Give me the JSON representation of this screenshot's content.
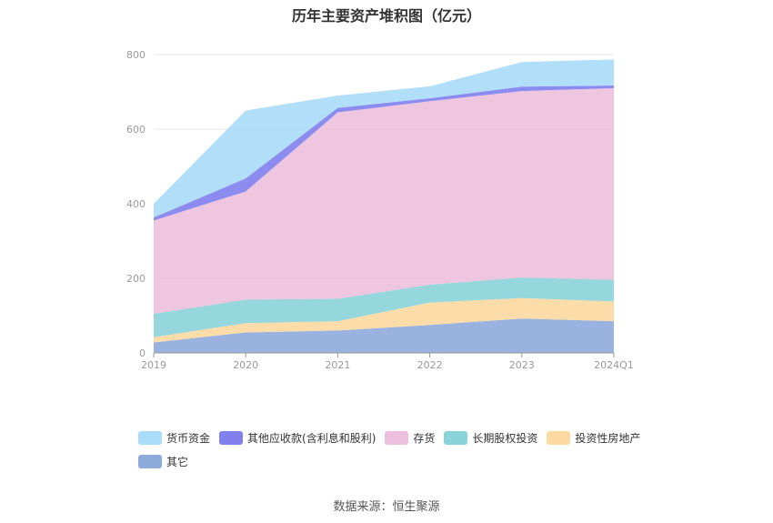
{
  "chart_data": {
    "type": "area",
    "stacked": true,
    "title": "历年主要资产堆积图（亿元）",
    "categories": [
      "2019",
      "2020",
      "2021",
      "2022",
      "2023",
      "2024Q1"
    ],
    "ylim": [
      0,
      800
    ],
    "yticks": [
      0,
      200,
      400,
      600,
      800
    ],
    "grid": true,
    "legend_position": "bottom",
    "series": [
      {
        "name": "其它",
        "color": "#8eaadb",
        "values": [
          28,
          55,
          60,
          75,
          92,
          85
        ]
      },
      {
        "name": "投资性房地产",
        "color": "#fcd9a0",
        "values": [
          14,
          25,
          25,
          60,
          55,
          53
        ]
      },
      {
        "name": "长期股权投资",
        "color": "#8ad3d8",
        "values": [
          63,
          63,
          60,
          48,
          55,
          58
        ]
      },
      {
        "name": "存货",
        "color": "#ecc0dc",
        "values": [
          250,
          290,
          500,
          492,
          500,
          514
        ]
      },
      {
        "name": "其他应收款(含利息和股利)",
        "color": "#8080ee",
        "values": [
          8,
          35,
          12,
          8,
          12,
          7
        ]
      },
      {
        "name": "货币资金",
        "color": "#a8dcf8",
        "values": [
          37,
          182,
          33,
          32,
          66,
          70
        ]
      }
    ],
    "legend_order": [
      "货币资金",
      "其他应收款(含利息和股利)",
      "存货",
      "长期股权投资",
      "投资性房地产",
      "其它"
    ]
  },
  "footer": {
    "source": "数据来源：恒生聚源"
  }
}
